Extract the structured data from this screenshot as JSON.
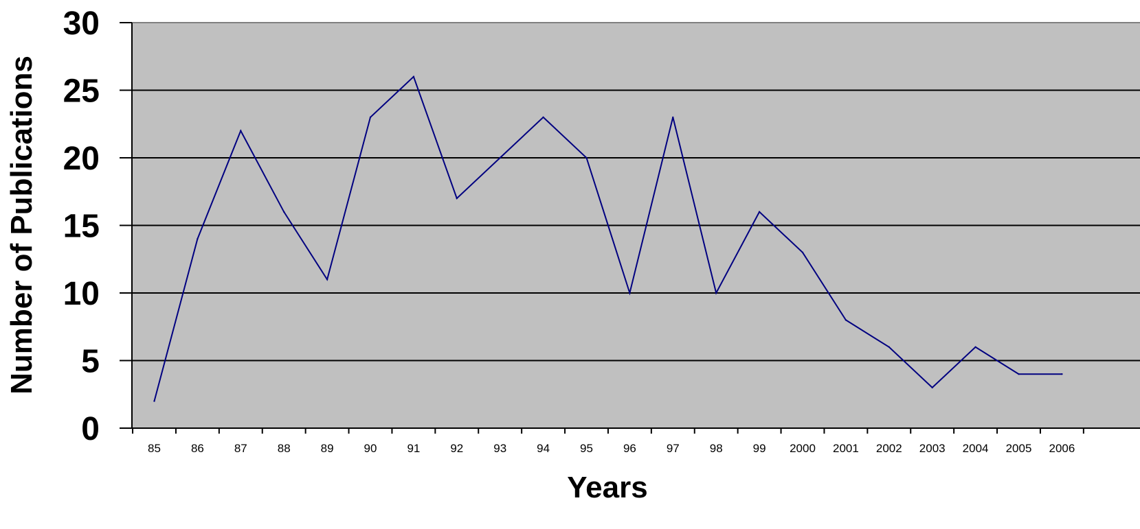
{
  "chart_data": {
    "type": "line",
    "title": "",
    "xlabel": "Years",
    "ylabel": "Number of Publications",
    "ylim": [
      0,
      30
    ],
    "yticks": [
      "0",
      "5",
      "10",
      "15",
      "20",
      "25",
      "30"
    ],
    "grid": "horizontal",
    "plot_background": "#c0c0c0",
    "line_color": "#000080",
    "x": [
      "85",
      "86",
      "87",
      "88",
      "89",
      "90",
      "91",
      "92",
      "93",
      "94",
      "95",
      "96",
      "97",
      "98",
      "99",
      "2000",
      "2001",
      "2002",
      "2003",
      "2004",
      "2005",
      "2006"
    ],
    "series": [
      {
        "values": [
          2,
          14,
          22,
          16,
          11,
          23,
          26,
          17,
          20,
          23,
          20,
          10,
          23,
          10,
          16,
          13,
          8,
          6,
          3,
          6,
          4,
          4
        ]
      }
    ]
  }
}
